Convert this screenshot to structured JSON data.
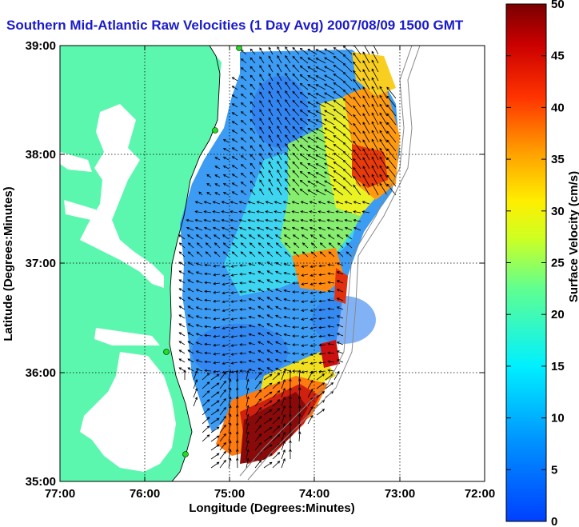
{
  "title": "Southern Mid-Atlantic Raw Velocities (1 Day Avg) 2007/08/09 1500 GMT",
  "axes": {
    "xlabel": "Longitude (Degrees:Minutes)",
    "ylabel": "Latitude (Degrees:Minutes)",
    "xticks": [
      "77:00",
      "76:00",
      "75:00",
      "74:00",
      "73:00",
      "72:00"
    ],
    "yticks": [
      "39:00",
      "38:00",
      "37:00",
      "36:00",
      "35:00"
    ],
    "xlim": [
      -77,
      -72
    ],
    "ylim": [
      35,
      39
    ],
    "grid": true
  },
  "colorbar": {
    "label": "Surface Velocity (cm/s)",
    "ticks": [
      "50",
      "45",
      "40",
      "35",
      "30",
      "25",
      "20",
      "15",
      "10",
      "5",
      "0"
    ],
    "range": [
      0,
      50
    ],
    "colormap": "jet"
  },
  "colors": {
    "land": "#5cf7ae",
    "water": "#ffffff",
    "title": "#1a1acc",
    "station": "#22dd22"
  }
}
